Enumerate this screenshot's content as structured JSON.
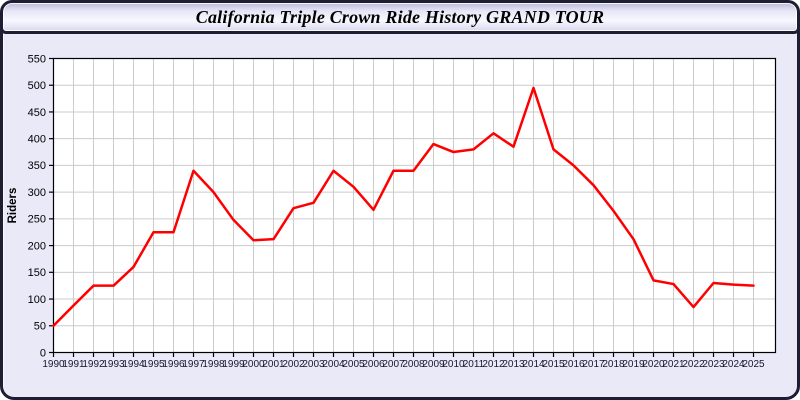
{
  "window": {
    "title": "California Triple Crown Ride History GRAND TOUR"
  },
  "chart_data": {
    "type": "line",
    "title": "California Triple Crown Ride History GRAND TOUR",
    "xlabel": "",
    "ylabel": "Riders",
    "ylim": [
      0,
      550
    ],
    "ytick_step": 50,
    "grid": true,
    "legend": false,
    "x": [
      1990,
      1991,
      1992,
      1993,
      1994,
      1995,
      1996,
      1997,
      1998,
      1999,
      2000,
      2001,
      2002,
      2003,
      2004,
      2005,
      2006,
      2007,
      2008,
      2009,
      2010,
      2011,
      2012,
      2013,
      2014,
      2015,
      2016,
      2017,
      2018,
      2019,
      2020,
      2021,
      2022,
      2023,
      2024,
      2025
    ],
    "series": [
      {
        "name": "Riders",
        "values": [
          50,
          88,
          125,
          125,
          160,
          225,
          225,
          340,
          300,
          248,
          210,
          212,
          270,
          280,
          340,
          310,
          267,
          340,
          340,
          390,
          375,
          380,
          410,
          385,
          495,
          380,
          350,
          313,
          265,
          212,
          135,
          128,
          85,
          130,
          127,
          125
        ]
      }
    ]
  },
  "colors": {
    "line": "#ff0000",
    "window_bg": "#e9e9f8",
    "plot_bg": "#ffffff",
    "grid": "#cccccc",
    "frame": "#000000",
    "outer_border": "#1e1e33",
    "tick_text": "#16162e"
  }
}
